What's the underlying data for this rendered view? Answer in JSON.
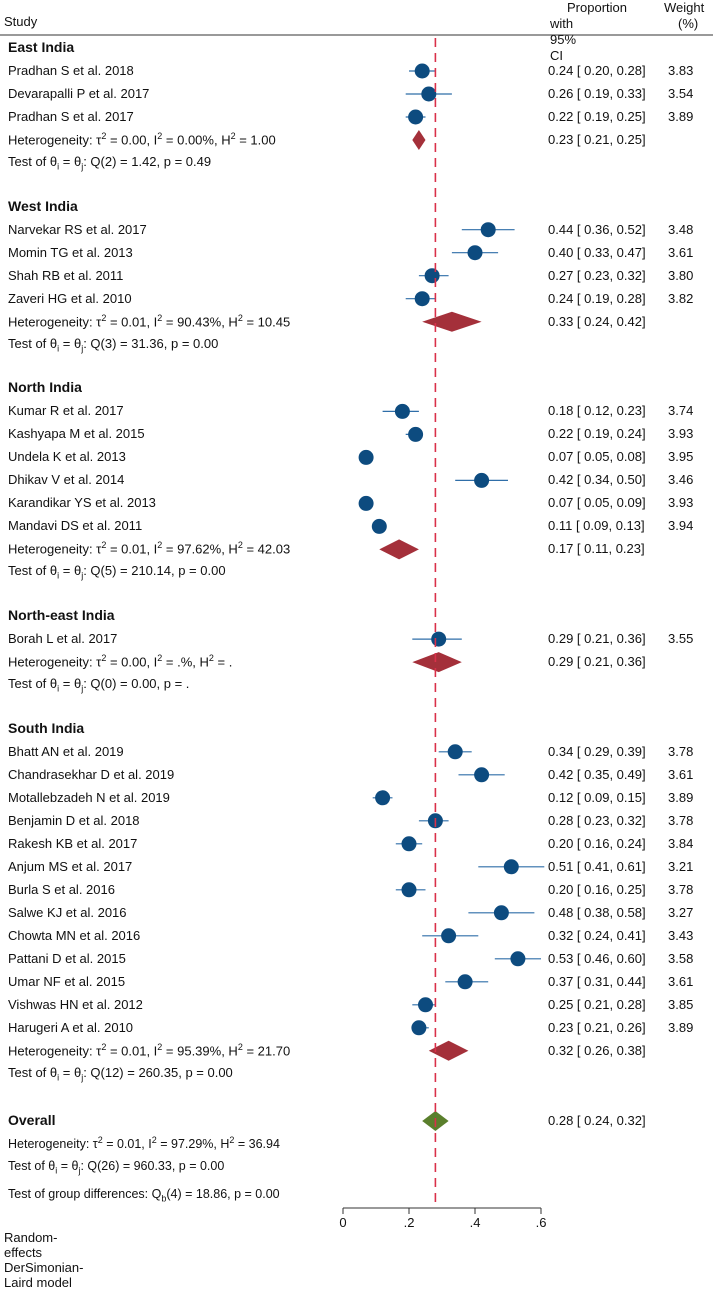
{
  "chart_data": {
    "type": "forest",
    "columns": {
      "study": "Study",
      "proportion": "Proportion",
      "proportion_sub": "with 95% CI",
      "weight": "Weight",
      "weight_sub": "(%)"
    },
    "xaxis": {
      "min": 0,
      "max": 0.6,
      "ticks": [
        {
          "v": 0,
          "label": "0"
        },
        {
          "v": 0.2,
          "label": ".2"
        },
        {
          "v": 0.4,
          "label": ".4"
        },
        {
          "v": 0.6,
          "label": ".6"
        }
      ]
    },
    "overall_line": 0.28,
    "groups": [
      {
        "name": "East India",
        "studies": [
          {
            "label": "Pradhan S et al. 2018",
            "est": 0.24,
            "lo": 0.2,
            "hi": 0.28,
            "ci_text": "0.24 [ 0.20,  0.28]",
            "weight": "3.83"
          },
          {
            "label": "Devarapalli P et al. 2017",
            "est": 0.26,
            "lo": 0.19,
            "hi": 0.33,
            "ci_text": "0.26 [ 0.19,  0.33]",
            "weight": "3.54"
          },
          {
            "label": "Pradhan S et al. 2017",
            "est": 0.22,
            "lo": 0.19,
            "hi": 0.25,
            "ci_text": "0.22 [ 0.19,  0.25]",
            "weight": "3.89"
          }
        ],
        "pooled": {
          "est": 0.23,
          "lo": 0.21,
          "hi": 0.25,
          "ci_text": "0.23 [ 0.21,  0.25]"
        },
        "het": {
          "tau2": "0.00",
          "I2": "0.00%",
          "H2": "1.00"
        },
        "test": {
          "df": "2",
          "Q": "1.42",
          "p": "0.49"
        }
      },
      {
        "name": "West India",
        "studies": [
          {
            "label": "Narvekar RS et al. 2017",
            "est": 0.44,
            "lo": 0.36,
            "hi": 0.52,
            "ci_text": "0.44 [ 0.36,  0.52]",
            "weight": "3.48"
          },
          {
            "label": "Momin TG et al. 2013",
            "est": 0.4,
            "lo": 0.33,
            "hi": 0.47,
            "ci_text": "0.40 [ 0.33,  0.47]",
            "weight": "3.61"
          },
          {
            "label": "Shah RB et al. 2011",
            "est": 0.27,
            "lo": 0.23,
            "hi": 0.32,
            "ci_text": "0.27 [ 0.23,  0.32]",
            "weight": "3.80"
          },
          {
            "label": "Zaveri HG et al. 2010",
            "est": 0.24,
            "lo": 0.19,
            "hi": 0.28,
            "ci_text": "0.24 [ 0.19,  0.28]",
            "weight": "3.82"
          }
        ],
        "pooled": {
          "est": 0.33,
          "lo": 0.24,
          "hi": 0.42,
          "ci_text": "0.33 [ 0.24,  0.42]"
        },
        "het": {
          "tau2": "0.01",
          "I2": "90.43%",
          "H2": "10.45"
        },
        "test": {
          "df": "3",
          "Q": "31.36",
          "p": "0.00"
        }
      },
      {
        "name": "North India",
        "studies": [
          {
            "label": "Kumar R et al. 2017",
            "est": 0.18,
            "lo": 0.12,
            "hi": 0.23,
            "ci_text": "0.18 [ 0.12,  0.23]",
            "weight": "3.74"
          },
          {
            "label": "Kashyapa M et al. 2015",
            "est": 0.22,
            "lo": 0.19,
            "hi": 0.24,
            "ci_text": "0.22 [ 0.19,  0.24]",
            "weight": "3.93"
          },
          {
            "label": "Undela K et al. 2013",
            "est": 0.07,
            "lo": 0.05,
            "hi": 0.08,
            "ci_text": "0.07 [ 0.05,  0.08]",
            "weight": "3.95"
          },
          {
            "label": "Dhikav V et al. 2014",
            "est": 0.42,
            "lo": 0.34,
            "hi": 0.5,
            "ci_text": "0.42 [ 0.34,  0.50]",
            "weight": "3.46"
          },
          {
            "label": "Karandikar YS et al. 2013",
            "est": 0.07,
            "lo": 0.05,
            "hi": 0.09,
            "ci_text": "0.07 [ 0.05,  0.09]",
            "weight": "3.93"
          },
          {
            "label": "Mandavi DS et al. 2011",
            "est": 0.11,
            "lo": 0.09,
            "hi": 0.13,
            "ci_text": "0.11 [ 0.09,  0.13]",
            "weight": "3.94"
          }
        ],
        "pooled": {
          "est": 0.17,
          "lo": 0.11,
          "hi": 0.23,
          "ci_text": "0.17 [ 0.11,  0.23]"
        },
        "het": {
          "tau2": "0.01",
          "I2": "97.62%",
          "H2": "42.03"
        },
        "test": {
          "df": "5",
          "Q": "210.14",
          "p": "0.00"
        }
      },
      {
        "name": "North-east India",
        "studies": [
          {
            "label": "Borah L et al. 2017",
            "est": 0.29,
            "lo": 0.21,
            "hi": 0.36,
            "ci_text": "0.29 [ 0.21,  0.36]",
            "weight": "3.55"
          }
        ],
        "pooled": {
          "est": 0.29,
          "lo": 0.21,
          "hi": 0.36,
          "ci_text": "0.29 [ 0.21,  0.36]"
        },
        "het": {
          "tau2": "0.00",
          "I2": ".%",
          "H2": "."
        },
        "test": {
          "df": "0",
          "Q": "0.00",
          "p": "."
        }
      },
      {
        "name": "South India",
        "studies": [
          {
            "label": "Bhatt AN et al. 2019",
            "est": 0.34,
            "lo": 0.29,
            "hi": 0.39,
            "ci_text": "0.34 [ 0.29,  0.39]",
            "weight": "3.78"
          },
          {
            "label": "Chandrasekhar D et al. 2019",
            "est": 0.42,
            "lo": 0.35,
            "hi": 0.49,
            "ci_text": "0.42 [ 0.35,  0.49]",
            "weight": "3.61"
          },
          {
            "label": "Motallebzadeh N et al. 2019",
            "est": 0.12,
            "lo": 0.09,
            "hi": 0.15,
            "ci_text": "0.12 [ 0.09,  0.15]",
            "weight": "3.89"
          },
          {
            "label": "Benjamin D et al. 2018",
            "est": 0.28,
            "lo": 0.23,
            "hi": 0.32,
            "ci_text": "0.28 [ 0.23,  0.32]",
            "weight": "3.78"
          },
          {
            "label": "Rakesh KB et al. 2017",
            "est": 0.2,
            "lo": 0.16,
            "hi": 0.24,
            "ci_text": "0.20 [ 0.16,  0.24]",
            "weight": "3.84"
          },
          {
            "label": "Anjum MS et al. 2017",
            "est": 0.51,
            "lo": 0.41,
            "hi": 0.61,
            "ci_text": "0.51 [ 0.41,  0.61]",
            "weight": "3.21"
          },
          {
            "label": "Burla S et al. 2016",
            "est": 0.2,
            "lo": 0.16,
            "hi": 0.25,
            "ci_text": "0.20 [ 0.16,  0.25]",
            "weight": "3.78"
          },
          {
            "label": "Salwe KJ et al. 2016",
            "est": 0.48,
            "lo": 0.38,
            "hi": 0.58,
            "ci_text": "0.48 [ 0.38,  0.58]",
            "weight": "3.27"
          },
          {
            "label": "Chowta MN et al. 2016",
            "est": 0.32,
            "lo": 0.24,
            "hi": 0.41,
            "ci_text": "0.32 [ 0.24,  0.41]",
            "weight": "3.43"
          },
          {
            "label": "Pattani D et al. 2015",
            "est": 0.53,
            "lo": 0.46,
            "hi": 0.6,
            "ci_text": "0.53 [ 0.46,  0.60]",
            "weight": "3.58"
          },
          {
            "label": "Umar NF et al. 2015",
            "est": 0.37,
            "lo": 0.31,
            "hi": 0.44,
            "ci_text": "0.37 [ 0.31,  0.44]",
            "weight": "3.61"
          },
          {
            "label": "Vishwas HN et al. 2012",
            "est": 0.25,
            "lo": 0.21,
            "hi": 0.28,
            "ci_text": "0.25 [ 0.21,  0.28]",
            "weight": "3.85"
          },
          {
            "label": "Harugeri A et al. 2010",
            "est": 0.23,
            "lo": 0.21,
            "hi": 0.26,
            "ci_text": "0.23 [ 0.21,  0.26]",
            "weight": "3.89"
          }
        ],
        "pooled": {
          "est": 0.32,
          "lo": 0.26,
          "hi": 0.38,
          "ci_text": "0.32 [ 0.26,  0.38]"
        },
        "het": {
          "tau2": "0.01",
          "I2": "95.39%",
          "H2": "21.70"
        },
        "test": {
          "df": "12",
          "Q": "260.35",
          "p": "0.00"
        }
      }
    ],
    "overall": {
      "name": "Overall",
      "est": 0.28,
      "lo": 0.24,
      "hi": 0.32,
      "ci_text": "0.28 [ 0.24,  0.32]",
      "het": {
        "tau2": "0.01",
        "I2": "97.29%",
        "H2": "36.94"
      },
      "test": {
        "df": "26",
        "Q": "960.33",
        "p": "0.00"
      },
      "group_test": {
        "df": "4",
        "Q": "18.86",
        "p": "0.00"
      }
    },
    "footer": "Random-effects DerSimonian-Laird model",
    "colors": {
      "marker": "#0d4b7f",
      "ci": "#2f6ea8",
      "diamond": "#a4303a",
      "overall_diamond": "#5a7f2c",
      "refline": "#d9304a"
    }
  }
}
